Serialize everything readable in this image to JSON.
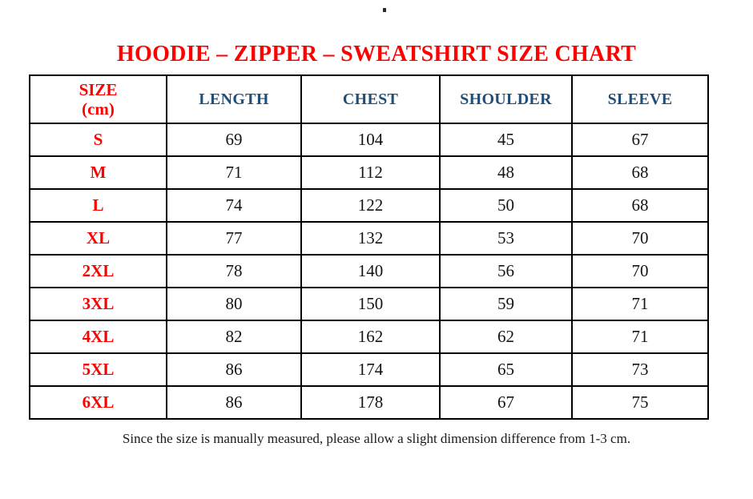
{
  "title": {
    "text": "HOODIE – ZIPPER – SWEATSHIRT SIZE CHART"
  },
  "table": {
    "header": {
      "size_line1": "SIZE",
      "size_line2": "(cm)",
      "columns": [
        "LENGTH",
        "CHEST",
        "SHOULDER",
        "SLEEVE"
      ]
    },
    "rows": [
      {
        "size": "S",
        "length": "69",
        "chest": "104",
        "shoulder": "45",
        "sleeve": "67"
      },
      {
        "size": "M",
        "length": "71",
        "chest": "112",
        "shoulder": "48",
        "sleeve": "68"
      },
      {
        "size": "L",
        "length": "74",
        "chest": "122",
        "shoulder": "50",
        "sleeve": "68"
      },
      {
        "size": "XL",
        "length": "77",
        "chest": "132",
        "shoulder": "53",
        "sleeve": "70"
      },
      {
        "size": "2XL",
        "length": "78",
        "chest": "140",
        "shoulder": "56",
        "sleeve": "70"
      },
      {
        "size": "3XL",
        "length": "80",
        "chest": "150",
        "shoulder": "59",
        "sleeve": "71"
      },
      {
        "size": "4XL",
        "length": "82",
        "chest": "162",
        "shoulder": "62",
        "sleeve": "71"
      },
      {
        "size": "5XL",
        "length": "86",
        "chest": "174",
        "shoulder": "65",
        "sleeve": "73"
      },
      {
        "size": "6XL",
        "length": "86",
        "chest": "178",
        "shoulder": "67",
        "sleeve": "75"
      }
    ]
  },
  "footer": {
    "note": "Since the size is manually measured, please allow a slight dimension difference from 1-3 cm."
  },
  "colors": {
    "title_red": "#ff0000",
    "header_blue": "#1f4e79",
    "border_black": "#000000",
    "value_text": "#141414",
    "background": "#ffffff"
  }
}
